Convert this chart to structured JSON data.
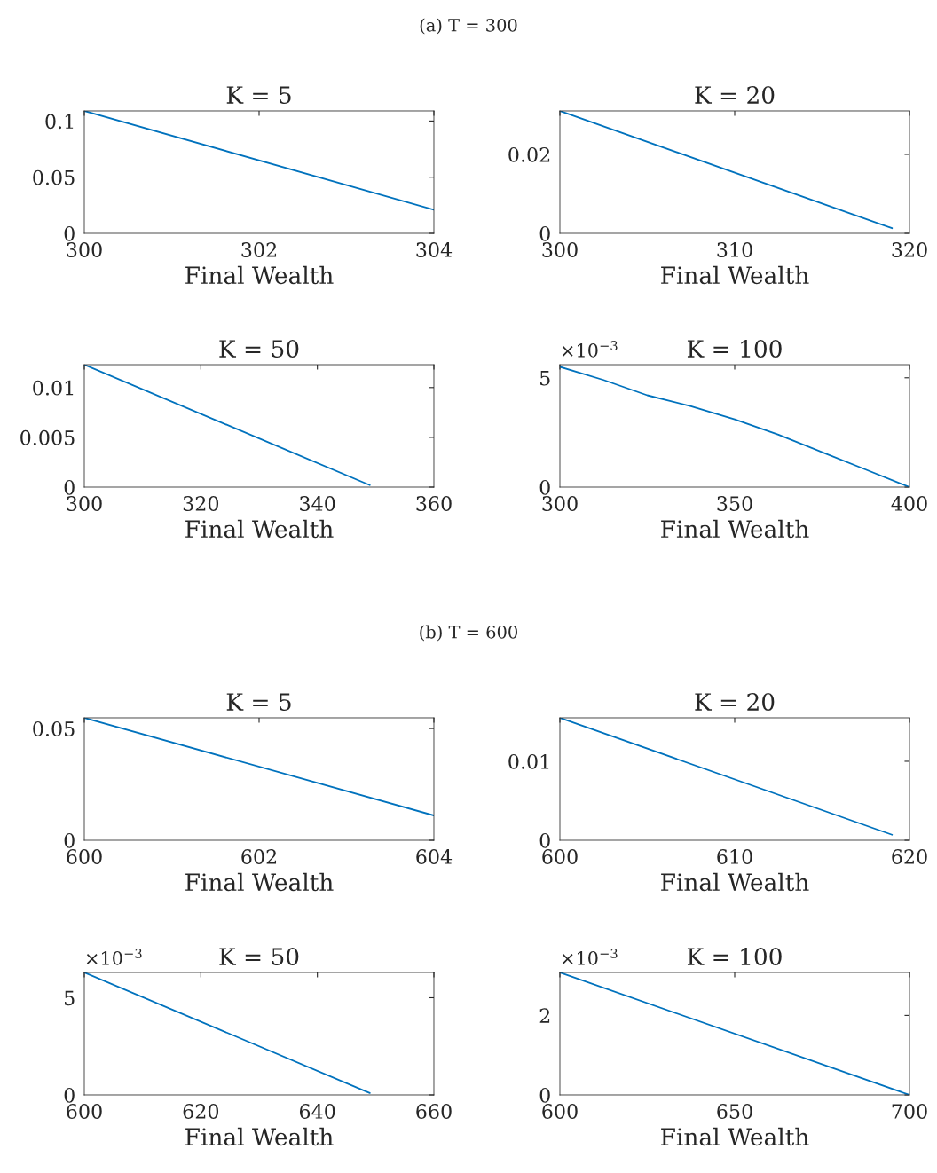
{
  "chart_data": [
    {
      "type": "line",
      "subtitle": "(a) T = 300",
      "title": "K = 5",
      "xlabel": "Final Wealth",
      "color": "#0072bd",
      "x": [
        300,
        304
      ],
      "values": [
        0.109,
        0.021
      ],
      "xlim": [
        300,
        304
      ],
      "ylim": [
        0,
        0.109
      ],
      "xticks": [
        300,
        302,
        304
      ],
      "yticks": [
        0,
        0.05,
        0.1
      ]
    },
    {
      "type": "line",
      "title": "K = 20",
      "xlabel": "Final Wealth",
      "color": "#0072bd",
      "x": [
        300,
        319
      ],
      "values": [
        0.031,
        0.0013
      ],
      "xlim": [
        300,
        320
      ],
      "ylim": [
        0,
        0.031
      ],
      "xticks": [
        300,
        310,
        320
      ],
      "yticks": [
        0,
        0.02
      ]
    },
    {
      "type": "line",
      "title": "K = 50",
      "xlabel": "Final Wealth",
      "color": "#0072bd",
      "x": [
        300,
        349
      ],
      "values": [
        0.0123,
        0.0002
      ],
      "xlim": [
        300,
        360
      ],
      "ylim": [
        0,
        0.0123
      ],
      "xticks": [
        300,
        320,
        340,
        360
      ],
      "yticks": [
        0,
        0.005,
        0.01
      ]
    },
    {
      "type": "line",
      "title": "K = 100",
      "xlabel": "Final Wealth",
      "color": "#0072bd",
      "x": [
        300,
        312.5,
        325,
        337.5,
        350,
        362.5,
        375,
        387.5,
        400
      ],
      "values": [
        5.5,
        4.9,
        4.2,
        3.7,
        3.1,
        2.4,
        1.6,
        0.8,
        0
      ],
      "xlim": [
        300,
        400
      ],
      "ylim": [
        0,
        5.6
      ],
      "xticks": [
        300,
        350,
        400
      ],
      "yticks": [
        0,
        5
      ],
      "annotations": [
        "×10$^{−3}$"
      ]
    },
    {
      "type": "line",
      "subtitle": "(b) T = 600",
      "title": "K = 5",
      "xlabel": "Final Wealth",
      "color": "#0072bd",
      "x": [
        600,
        604
      ],
      "values": [
        0.0548,
        0.0111
      ],
      "xlim": [
        600,
        604
      ],
      "ylim": [
        0,
        0.0548
      ],
      "xticks": [
        600,
        602,
        604
      ],
      "yticks": [
        0,
        0.05
      ]
    },
    {
      "type": "line",
      "title": "K = 20",
      "xlabel": "Final Wealth",
      "color": "#0072bd",
      "x": [
        600,
        619
      ],
      "values": [
        0.0155,
        0.0007
      ],
      "xlim": [
        600,
        620
      ],
      "ylim": [
        0,
        0.0155
      ],
      "xticks": [
        600,
        610,
        620
      ],
      "yticks": [
        0,
        0.01
      ]
    },
    {
      "type": "line",
      "title": "K = 50",
      "xlabel": "Final Wealth",
      "color": "#0072bd",
      "x": [
        600,
        649
      ],
      "values": [
        6.3,
        0.1
      ],
      "xlim": [
        600,
        660
      ],
      "ylim": [
        0,
        6.3
      ],
      "xticks": [
        600,
        620,
        640,
        660
      ],
      "yticks": [
        0,
        5
      ],
      "annotations": [
        "×10$^{−3}$"
      ]
    },
    {
      "type": "line",
      "title": "K = 100",
      "xlabel": "Final Wealth",
      "color": "#0072bd",
      "x": [
        600,
        700
      ],
      "values": [
        3.08,
        0
      ],
      "xlim": [
        600,
        700
      ],
      "ylim": [
        0,
        3.08
      ],
      "xticks": [
        600,
        650,
        700
      ],
      "yticks": [
        0,
        2
      ],
      "annotations": [
        "×10$^{−3}$"
      ]
    }
  ]
}
